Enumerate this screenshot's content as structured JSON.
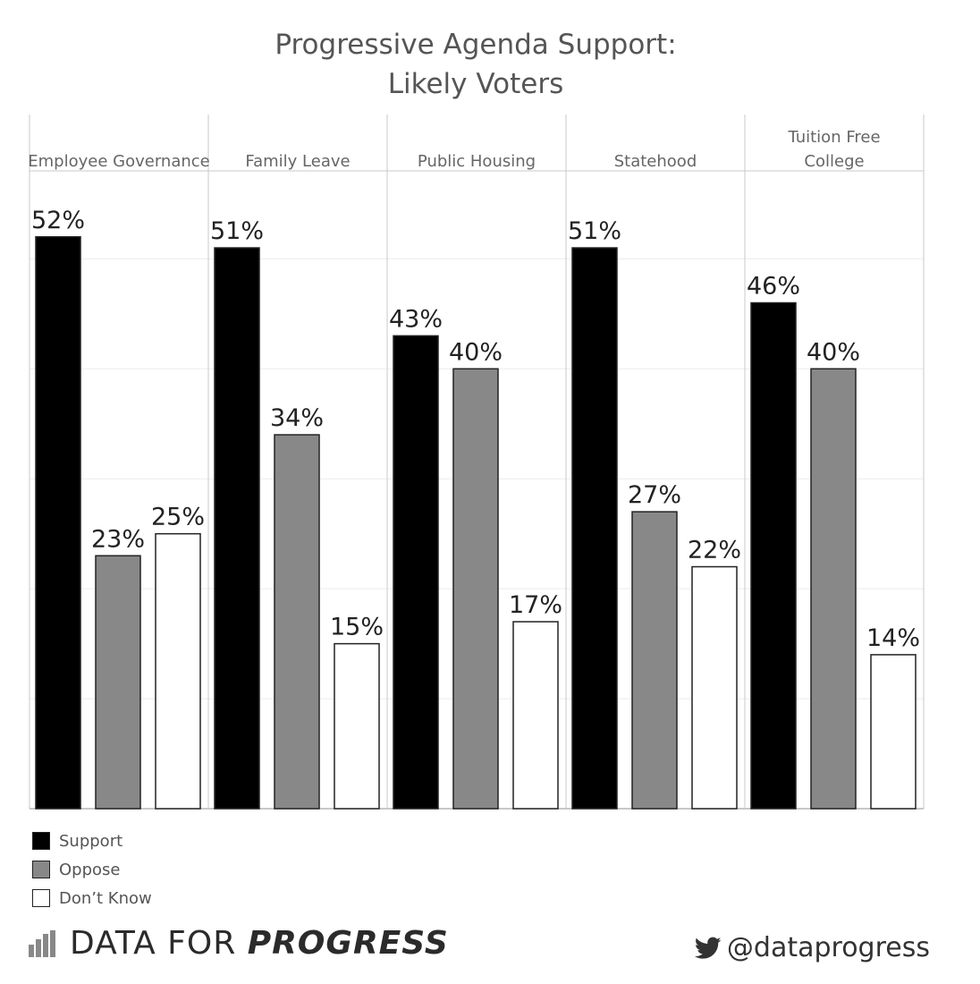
{
  "title_line1": "Progressive Agenda Support:",
  "title_line2": "Likely Voters",
  "chart_data": {
    "type": "bar",
    "title": "Progressive Agenda Support: Likely Voters",
    "panels": [
      "Employee Governance",
      "Family Leave",
      "Public Housing",
      "Statehood",
      "Tuition Free College"
    ],
    "series": [
      {
        "name": "Support",
        "color": "#000000",
        "values": [
          52,
          51,
          43,
          51,
          46
        ]
      },
      {
        "name": "Oppose",
        "color": "#888888",
        "values": [
          23,
          34,
          40,
          27,
          40
        ]
      },
      {
        "name": "Don’t Know",
        "color": "#ffffff",
        "values": [
          25,
          15,
          17,
          22,
          14
        ]
      }
    ],
    "value_format": "percent",
    "ylim": [
      0,
      58
    ],
    "grid": true,
    "legend_position": "bottom-left"
  },
  "legend": [
    {
      "label": "Support",
      "color": "#000000"
    },
    {
      "label": "Oppose",
      "color": "#888888"
    },
    {
      "label": "Don’t Know",
      "color": "#ffffff"
    }
  ],
  "brand": {
    "light": "DATA FOR ",
    "bold": "PROGRESS",
    "icon": "bar-chart-icon"
  },
  "twitter": {
    "handle": "@dataprogress",
    "icon": "twitter-bird-icon"
  }
}
